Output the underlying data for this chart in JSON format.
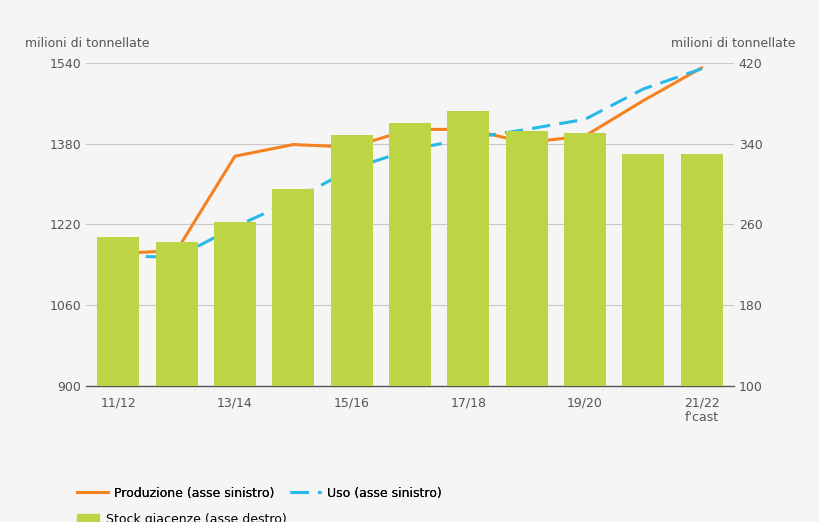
{
  "x_positions": [
    0,
    1,
    2,
    3,
    4,
    5,
    6,
    7,
    8,
    9,
    10
  ],
  "x_tick_labels": [
    "11/12",
    "13/14",
    "15/16",
    "17/18",
    "19/20",
    "21/22\nf'cast"
  ],
  "x_tick_positions": [
    0,
    2,
    4,
    6,
    8,
    10
  ],
  "produzione": [
    1163,
    1168,
    1355,
    1378,
    1373,
    1408,
    1408,
    1382,
    1395,
    1465,
    1530
  ],
  "uso": [
    1158,
    1155,
    1215,
    1268,
    1330,
    1368,
    1390,
    1408,
    1428,
    1488,
    1528
  ],
  "stock": [
    248,
    243,
    262,
    295,
    348,
    360,
    372,
    352,
    350,
    330,
    330
  ],
  "left_ylim": [
    900,
    1540
  ],
  "left_yticks": [
    900,
    1060,
    1220,
    1380,
    1540
  ],
  "right_ylim": [
    100,
    420
  ],
  "right_yticks": [
    100,
    180,
    260,
    340,
    420
  ],
  "bar_color": "#bdd444",
  "produzione_color": "#f58220",
  "uso_color": "#29b9e8",
  "background_color": "#f5f5f5",
  "ylabel_left": "milioni di tonnellate",
  "ylabel_right": "milioni di tonnellate",
  "legend_produzione": "Produzione (asse sinistro)",
  "legend_uso": "Uso (asse sinistro)",
  "legend_stock": "Stock giacenze (asse destro)",
  "grid_color": "#c8c8c8"
}
